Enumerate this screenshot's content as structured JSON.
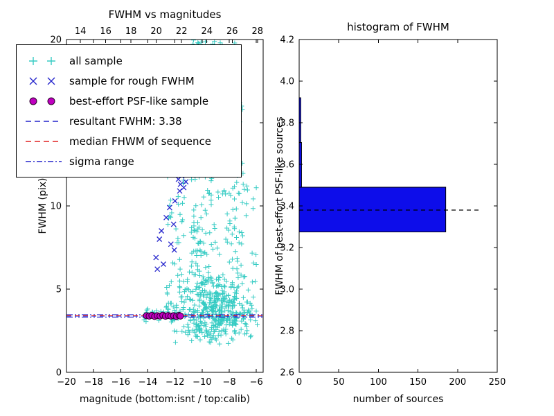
{
  "figure": {
    "background": "#ffffff"
  },
  "chart_data": [
    {
      "type": "scatter",
      "title": "FWHM vs magnitudes",
      "xlabel": "magnitude (bottom:isnt / top:calib)",
      "ylabel": "FWHM (pix)",
      "xlim": [
        -20,
        -5.5
      ],
      "xlim_top": [
        12.9,
        28.45
      ],
      "ylim": [
        0,
        20
      ],
      "x_ticks_bottom": [
        -20,
        -18,
        -16,
        -14,
        -12,
        -10,
        -8,
        -6
      ],
      "x_ticks_top": [
        14,
        16,
        18,
        20,
        22,
        24,
        26,
        28
      ],
      "y_ticks": [
        0,
        5,
        10,
        15,
        20
      ],
      "grid": false,
      "legend_position": "upper left",
      "series": [
        {
          "name": "all sample",
          "marker": "plus",
          "color": "#35cbc3",
          "clusters": [
            {
              "n": 430,
              "x": {
                "type": "gauss",
                "mu": -9.0,
                "sd": 1.35,
                "min": -12.7,
                "max": -5.7
              },
              "y": {
                "type": "gauss",
                "mu": 3.6,
                "sd": 1.0,
                "min": 1.7,
                "max": 7.2
              }
            },
            {
              "n": 150,
              "x": {
                "type": "uniform",
                "min": -10.8,
                "max": -9.3
              },
              "y": {
                "type": "uniform",
                "min": 5,
                "max": 20
              }
            },
            {
              "n": 70,
              "x": {
                "type": "uniform",
                "min": -12.6,
                "max": -11.2
              },
              "y": {
                "type": "uniform",
                "min": 5,
                "max": 19
              }
            },
            {
              "n": 90,
              "x": {
                "type": "uniform",
                "min": -9.4,
                "max": -7.0
              },
              "y": {
                "type": "uniform",
                "min": 7,
                "max": 20
              }
            },
            {
              "n": 45,
              "x": {
                "type": "uniform",
                "min": -8.3,
                "max": -6.0
              },
              "y": {
                "type": "uniform",
                "min": 4.5,
                "max": 12
              }
            },
            {
              "n": 30,
              "x": {
                "type": "uniform",
                "min": -14.3,
                "max": -11.6
              },
              "y": {
                "type": "gauss",
                "mu": 3.45,
                "sd": 0.25,
                "min": 2.8,
                "max": 4.2
              }
            },
            {
              "n": 15,
              "x": {
                "type": "uniform",
                "min": -11.2,
                "max": -8.5
              },
              "y": {
                "type": "uniform",
                "min": 18.5,
                "max": 20
              }
            },
            {
              "n": 25,
              "x": {
                "type": "uniform",
                "min": -12.7,
                "max": -11.0
              },
              "y": {
                "type": "uniform",
                "min": 3.5,
                "max": 5.5
              }
            }
          ]
        },
        {
          "name": "sample for rough FWHM",
          "marker": "x",
          "color": "#2424cc",
          "points": [
            [
              -11.75,
              11.6
            ],
            [
              -11.6,
              11.3
            ],
            [
              -11.5,
              11.8
            ],
            [
              -11.35,
              11.1
            ],
            [
              -11.65,
              10.9
            ],
            [
              -11.2,
              11.45
            ],
            [
              -12.0,
              10.3
            ],
            [
              -12.4,
              9.9
            ],
            [
              -12.65,
              9.3
            ],
            [
              -12.1,
              8.9
            ],
            [
              -13.0,
              8.5
            ],
            [
              -13.15,
              8.0
            ],
            [
              -12.3,
              7.7
            ],
            [
              -12.05,
              7.35
            ],
            [
              -13.4,
              6.9
            ],
            [
              -12.85,
              6.5
            ],
            [
              -13.3,
              6.2
            ],
            [
              -11.05,
              12.1
            ],
            [
              -13.9,
              3.45
            ],
            [
              -12.6,
              3.4
            ]
          ]
        },
        {
          "name": "best-effort PSF-like sample",
          "marker": "circle",
          "color": "#c000c0",
          "edge": "#2a002a",
          "points": [
            [
              -14.1,
              3.4
            ],
            [
              -13.9,
              3.38
            ],
            [
              -13.7,
              3.42
            ],
            [
              -13.5,
              3.36
            ],
            [
              -13.3,
              3.4
            ],
            [
              -13.1,
              3.38
            ],
            [
              -12.9,
              3.43
            ],
            [
              -12.7,
              3.37
            ],
            [
              -12.5,
              3.41
            ],
            [
              -12.3,
              3.38
            ],
            [
              -12.1,
              3.4
            ],
            [
              -11.9,
              3.36
            ],
            [
              -11.7,
              3.42
            ],
            [
              -11.6,
              3.38
            ]
          ]
        }
      ],
      "hlines": [
        {
          "name": "resultant FWHM",
          "y": 3.38,
          "style": "dashed",
          "color": "#2424cc"
        },
        {
          "name": "median FHWM of sequence",
          "y": 3.4,
          "style": "dashed",
          "color": "#e02020"
        },
        {
          "name": "sigma range low",
          "y": 3.32,
          "style": "dashdot",
          "color": "#2424cc"
        },
        {
          "name": "sigma range high",
          "y": 3.46,
          "style": "dashdot",
          "color": "#2424cc"
        }
      ],
      "legend": [
        {
          "label": "all sample",
          "marker": "plus",
          "color": "#35cbc3"
        },
        {
          "label": "sample for rough FWHM",
          "marker": "x",
          "color": "#2424cc"
        },
        {
          "label": "best-effort PSF-like sample",
          "marker": "circle",
          "color": "#c000c0",
          "edge": "#2a002a"
        },
        {
          "label": "resultant FWHM: 3.38",
          "marker": "dashed",
          "color": "#2424cc"
        },
        {
          "label": "median FHWM of sequence",
          "marker": "dashed",
          "color": "#e02020"
        },
        {
          "label": "sigma range",
          "marker": "dashdot",
          "color": "#2424cc"
        }
      ]
    },
    {
      "type": "bar",
      "orientation": "horizontal",
      "title": "histogram of FWHM",
      "xlabel": "number of sources",
      "ylabel": "FWHM of best-effort PSF-like sources",
      "xlim": [
        0,
        250
      ],
      "ylim": [
        2.6,
        4.2
      ],
      "x_ticks": [
        0,
        50,
        100,
        150,
        200,
        250
      ],
      "y_ticks": [
        2.6,
        2.8,
        3.0,
        3.2,
        3.4,
        3.6,
        3.8,
        4.0,
        4.2
      ],
      "grid": false,
      "bar_color": "#0d0dea",
      "bar_edge": "#000000",
      "bins": [
        {
          "y0": 3.275,
          "y1": 3.49,
          "count": 185
        },
        {
          "y0": 3.49,
          "y1": 3.705,
          "count": 3
        },
        {
          "y0": 3.705,
          "y1": 3.92,
          "count": 2
        }
      ],
      "median_line": {
        "y": 3.38,
        "x_start": 0,
        "x_end": 228,
        "style": "dashed",
        "color": "#000000"
      }
    }
  ]
}
